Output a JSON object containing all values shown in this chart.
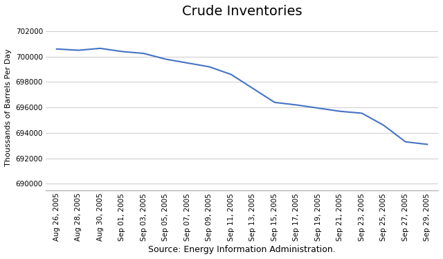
{
  "title": "Crude Inventories",
  "xlabel": "Source: Energy Information Administration.",
  "ylabel": "Thoussands of Barrels Per Day",
  "line_color": "#4472C4",
  "line_width": 1.5,
  "background_color": "#ffffff",
  "ylim": [
    689500,
    702500
  ],
  "yticks": [
    690000,
    692000,
    694000,
    696000,
    698000,
    700000,
    702000
  ],
  "labels": [
    "Aug 26, 2005",
    "Aug 28, 2005",
    "Aug 30, 2005",
    "Sep 01, 2005",
    "Sep 03, 2005",
    "Sep 05, 2005",
    "Sep 07, 2005",
    "Sep 09, 2005",
    "Sep 11, 2005",
    "Sep 13, 2005",
    "Sep 15, 2005",
    "Sep 17, 2005",
    "Sep 19, 2005",
    "Sep 21, 2005",
    "Sep 23, 2005",
    "Sep 25, 2005",
    "Sep 27, 2005",
    "Sep 29, 2005"
  ],
  "values": [
    700600,
    700500,
    700650,
    700400,
    700250,
    699800,
    699500,
    699200,
    698600,
    697500,
    696400,
    696200,
    695950,
    695700,
    695550,
    694600,
    693300,
    693100
  ],
  "grid_color": "#d0d0d0",
  "tick_label_fontsize": 7.5,
  "ylabel_fontsize": 8,
  "xlabel_fontsize": 9,
  "title_fontsize": 14
}
